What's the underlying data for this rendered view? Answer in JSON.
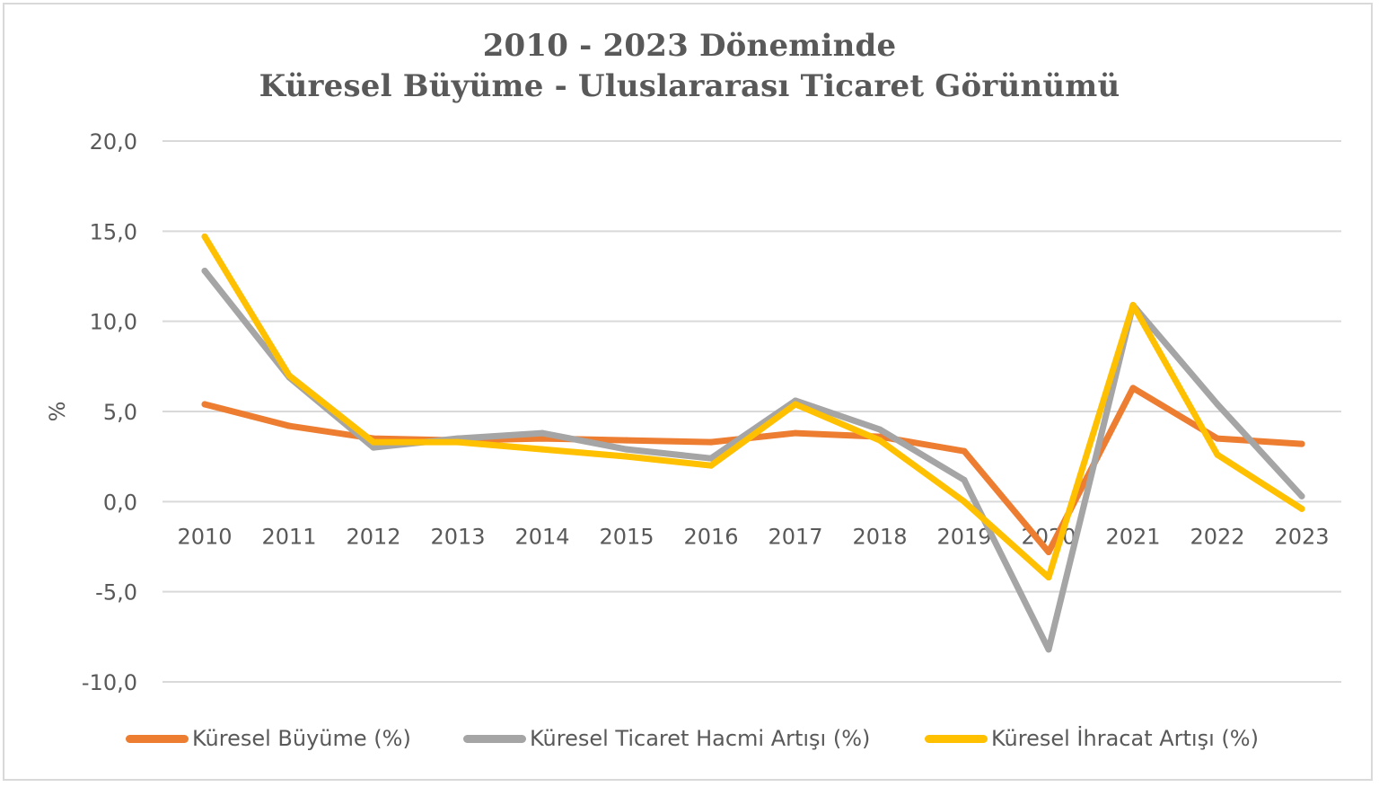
{
  "chart_data": {
    "type": "line",
    "title_line1": "2010 - 2023 Döneminde",
    "title_line2": "Küresel Büyüme - Uluslararası Ticaret Görünümü",
    "ylabel": "%",
    "xlabel": "",
    "ylim": [
      -10,
      20
    ],
    "yticks": [
      20,
      15,
      10,
      5,
      0,
      -5,
      -10
    ],
    "ytick_labels": [
      "20,0",
      "15,0",
      "10,0",
      "5,0",
      "0,0",
      "-5,0",
      "-10,0"
    ],
    "categories": [
      "2010",
      "2011",
      "2012",
      "2013",
      "2014",
      "2015",
      "2016",
      "2017",
      "2018",
      "2019",
      "2020",
      "2021",
      "2022",
      "2023"
    ],
    "grid": true,
    "legend_position": "bottom",
    "series": [
      {
        "name": "Küresel Büyüme (%)",
        "color": "#ed7d31",
        "values": [
          5.4,
          4.2,
          3.5,
          3.4,
          3.5,
          3.4,
          3.3,
          3.8,
          3.6,
          2.8,
          -2.8,
          6.3,
          3.5,
          3.2
        ]
      },
      {
        "name": "Küresel Ticaret Hacmi Artışı (%)",
        "color": "#a5a5a5",
        "values": [
          12.8,
          6.9,
          3.0,
          3.5,
          3.8,
          2.9,
          2.4,
          5.6,
          4.0,
          1.2,
          -8.2,
          10.9,
          5.4,
          0.3
        ]
      },
      {
        "name": "Küresel İhracat Artışı (%)",
        "color": "#ffc000",
        "values": [
          14.7,
          7.0,
          3.3,
          3.3,
          2.9,
          2.5,
          2.0,
          5.4,
          3.4,
          0.0,
          -4.2,
          10.9,
          2.6,
          -0.4
        ]
      }
    ]
  }
}
